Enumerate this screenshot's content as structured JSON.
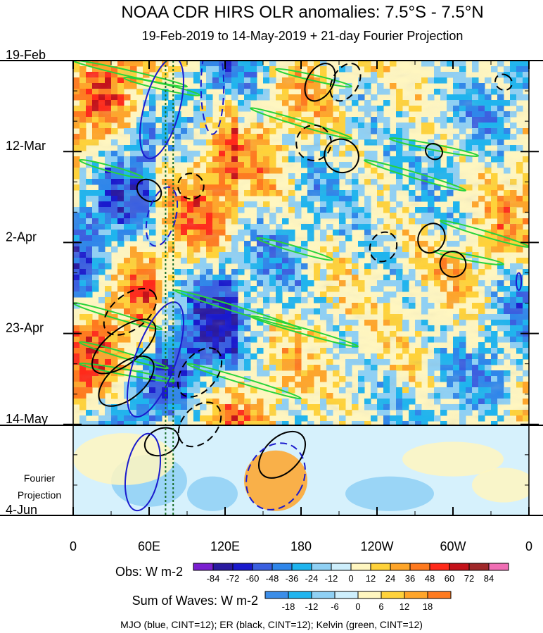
{
  "chart_data": {
    "type": "heatmap",
    "title": "NOAA CDR HIRS OLR anomalies: 7.5°S - 7.5°N",
    "subtitle": "19-Feb-2019 to 14-May-2019 + 21-day Fourier Projection",
    "y_ticks": [
      {
        "label": "19-Feb",
        "day": 0
      },
      {
        "label": "12-Mar",
        "day": 21
      },
      {
        "label": "2-Apr",
        "day": 42
      },
      {
        "label": "23-Apr",
        "day": 63
      },
      {
        "label": "14-May",
        "day": 84
      },
      {
        "label": "4-Jun",
        "day": 105
      }
    ],
    "y_range_days": [
      0,
      105
    ],
    "obs_end_day": 84,
    "projection_label": [
      "Fourier",
      "Projection"
    ],
    "x_ticks": [
      {
        "label": "0",
        "lon": 0
      },
      {
        "label": "60E",
        "lon": 60
      },
      {
        "label": "120E",
        "lon": 120
      },
      {
        "label": "180",
        "lon": 180
      },
      {
        "label": "120W",
        "lon": 240
      },
      {
        "label": "60W",
        "lon": 300
      },
      {
        "label": "0",
        "lon": 360
      }
    ],
    "x_range_lon": [
      0,
      360
    ],
    "reference_lines_lon": [
      73,
      79
    ],
    "obs_colorbar": {
      "title": "Obs: W m-2",
      "levels": [
        "-84",
        "-72",
        "-60",
        "-48",
        "-36",
        "-24",
        "-12",
        "0",
        "12",
        "24",
        "36",
        "48",
        "60",
        "72",
        "84"
      ],
      "colors": [
        "#7a1fd0",
        "#2a1aa0",
        "#1a1acd",
        "#3a5fe0",
        "#2f86ea",
        "#1fb4ee",
        "#8fd0f4",
        "#cdeefc",
        "#fff6c0",
        "#ffd23a",
        "#ffa529",
        "#ff7a1f",
        "#ff2a1a",
        "#c4121a",
        "#a0282a",
        "#f06eb4"
      ]
    },
    "waves_colorbar": {
      "title": "Sum of Waves: W m-2",
      "levels": [
        "-18",
        "-12",
        "-6",
        "0",
        "6",
        "12",
        "18"
      ],
      "colors": [
        "#3b8de8",
        "#1fb4ee",
        "#8fd0f4",
        "#cdeefc",
        "#fff6c0",
        "#ffd23a",
        "#ffa529",
        "#ff7a1f"
      ]
    },
    "footnote": "MJO (blue, CINT=12); ER (black, CINT=12); Kelvin (green, CINT=12)",
    "contours": {
      "mjo": {
        "color": "#1a1acd",
        "items": [
          {
            "lon": 70,
            "day": 11,
            "rx": 14,
            "ry": 12,
            "rot": -15,
            "dash": false
          },
          {
            "lon": 70,
            "day": 36,
            "rx": 11,
            "ry": 7,
            "rot": -15,
            "dash": true
          },
          {
            "lon": 110,
            "day": 6,
            "rx": 9,
            "ry": 11,
            "rot": 0,
            "dash": true
          },
          {
            "lon": 65,
            "day": 69,
            "rx": 16,
            "ry": 14,
            "rot": -20,
            "dash": false
          },
          {
            "lon": 55,
            "day": 95,
            "rx": 13,
            "ry": 9,
            "rot": -10,
            "dash": false
          },
          {
            "lon": 160,
            "day": 96,
            "rx": 22,
            "ry": 8,
            "rot": -28,
            "dash": true
          },
          {
            "lon": 352,
            "day": 51,
            "rx": 2,
            "ry": 2,
            "rot": 0,
            "dash": false
          }
        ]
      },
      "er": {
        "color": "#000000",
        "items": [
          {
            "lon": 195,
            "day": 5,
            "rx": 16,
            "ry": 3,
            "rot": 60,
            "dash": false
          },
          {
            "lon": 215,
            "day": 5,
            "rx": 16,
            "ry": 3,
            "rot": 60,
            "dash": true
          },
          {
            "lon": 190,
            "day": 19,
            "rx": 14,
            "ry": 4,
            "rot": 60,
            "dash": true
          },
          {
            "lon": 212,
            "day": 22,
            "rx": 13,
            "ry": 4,
            "rot": 58,
            "dash": false
          },
          {
            "lon": 93,
            "day": 29,
            "rx": 10,
            "ry": 3,
            "rot": 58,
            "dash": true
          },
          {
            "lon": 60,
            "day": 30,
            "rx": 8,
            "ry": 3,
            "rot": 55,
            "dash": false
          },
          {
            "lon": 245,
            "day": 43,
            "rx": 12,
            "ry": 3,
            "rot": 62,
            "dash": true
          },
          {
            "lon": 283,
            "day": 41,
            "rx": 12,
            "ry": 3,
            "rot": 62,
            "dash": false
          },
          {
            "lon": 300,
            "day": 47,
            "rx": 10,
            "ry": 3,
            "rot": 60,
            "dash": false
          },
          {
            "lon": 340,
            "day": 5,
            "rx": 6,
            "ry": 2,
            "rot": 60,
            "dash": true
          },
          {
            "lon": 285,
            "day": 21,
            "rx": 6,
            "ry": 2,
            "rot": 60,
            "dash": false
          },
          {
            "lon": 45,
            "day": 58,
            "rx": 24,
            "ry": 4,
            "rot": 38,
            "dash": true
          },
          {
            "lon": 40,
            "day": 66,
            "rx": 30,
            "ry": 4,
            "rot": 38,
            "dash": false
          },
          {
            "lon": 42,
            "day": 74,
            "rx": 26,
            "ry": 4,
            "rot": 40,
            "dash": false
          },
          {
            "lon": 100,
            "day": 72,
            "rx": 22,
            "ry": 4,
            "rot": 52,
            "dash": true
          },
          {
            "lon": 100,
            "day": 84,
            "rx": 20,
            "ry": 4,
            "rot": 48,
            "dash": true
          },
          {
            "lon": 165,
            "day": 91,
            "rx": 22,
            "ry": 4,
            "rot": 45,
            "dash": false
          },
          {
            "lon": 70,
            "day": 88,
            "rx": 14,
            "ry": 3,
            "rot": 25,
            "dash": false
          }
        ]
      },
      "kelvin": {
        "color": "#29d33a",
        "items": [
          {
            "lon": 100,
            "day": 4,
            "x1": 0,
            "d1": 0,
            "x2": 90,
            "d2": 6
          },
          {
            "lon": 100,
            "day": 8,
            "x1": 40,
            "d1": 4,
            "x2": 100,
            "d2": 8
          },
          {
            "lon": 200,
            "day": 16,
            "x1": 140,
            "d1": 11,
            "x2": 220,
            "d2": 18
          },
          {
            "lon": 200,
            "day": 6,
            "x1": 160,
            "d1": 2,
            "x2": 220,
            "d2": 6
          },
          {
            "lon": 300,
            "day": 21,
            "x1": 250,
            "d1": 18,
            "x2": 320,
            "d2": 22
          },
          {
            "lon": 300,
            "day": 26,
            "x1": 230,
            "d1": 23,
            "x2": 310,
            "d2": 30
          },
          {
            "lon": 330,
            "day": 42,
            "x1": 290,
            "d1": 37,
            "x2": 360,
            "d2": 43
          },
          {
            "lon": 40,
            "day": 25,
            "x1": 5,
            "d1": 23,
            "x2": 55,
            "d2": 27
          },
          {
            "lon": 190,
            "day": 44,
            "x1": 145,
            "d1": 41,
            "x2": 205,
            "d2": 46
          },
          {
            "lon": 140,
            "day": 58,
            "x1": 80,
            "d1": 53,
            "x2": 180,
            "d2": 62
          },
          {
            "lon": 40,
            "day": 60,
            "x1": 0,
            "d1": 56,
            "x2": 70,
            "d2": 62
          },
          {
            "lon": 190,
            "day": 63,
            "x1": 140,
            "d1": 59,
            "x2": 225,
            "d2": 66
          },
          {
            "lon": 40,
            "day": 69,
            "x1": 5,
            "d1": 65,
            "x2": 75,
            "d2": 71
          },
          {
            "lon": 150,
            "day": 76,
            "x1": 90,
            "d1": 70,
            "x2": 180,
            "d2": 78
          },
          {
            "lon": 320,
            "day": 45,
            "x1": 285,
            "d1": 44,
            "x2": 340,
            "d2": 47
          },
          {
            "lon": 35,
            "day": 72,
            "x1": 5,
            "d1": 70,
            "x2": 80,
            "d2": 74
          }
        ]
      }
    }
  }
}
